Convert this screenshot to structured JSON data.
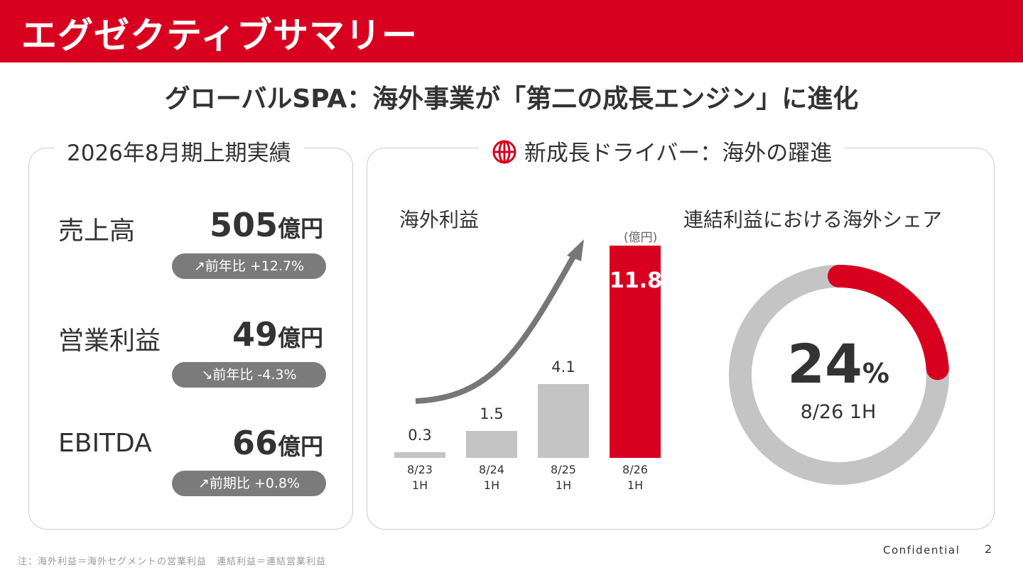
{
  "header": {
    "title": "エグゼクティブサマリー"
  },
  "subtitle": "グローバルSPA：海外事業が「第二の成長エンジン」に進化",
  "left_panel": {
    "title": "2026年8月期上期実績",
    "kpis": [
      {
        "label": "売上高",
        "value": "505",
        "unit": "億円",
        "change": "↗前年比 +12.7%"
      },
      {
        "label": "営業利益",
        "value": "49",
        "unit": "億円",
        "change": "↘前年比 -4.3%"
      },
      {
        "label": "EBITDA",
        "value": "66",
        "unit": "億円",
        "change": "↗前期比 +0.8%"
      }
    ]
  },
  "right_panel": {
    "title": "新成長ドライバー：海外の躍進",
    "icon": "globe-icon",
    "bar_title": "海外利益",
    "unit": "(億円)",
    "donut_title": "連結利益における海外シェア",
    "donut_value": "24",
    "donut_unit": "%",
    "donut_caption": "8/26 1H"
  },
  "chart_data": [
    {
      "type": "bar",
      "title": "海外利益",
      "ylabel": "(億円)",
      "categories": [
        "8/23 1H",
        "8/24 1H",
        "8/25 1H",
        "8/26 1H"
      ],
      "category_lines": [
        [
          "8/23",
          "1H"
        ],
        [
          "8/24",
          "1H"
        ],
        [
          "8/25",
          "1H"
        ],
        [
          "8/26",
          "1H"
        ]
      ],
      "values": [
        0.3,
        1.5,
        4.1,
        11.8
      ],
      "labels": [
        "0.3",
        "1.5",
        "4.1",
        "11.8"
      ],
      "colors": [
        "#c4c4c4",
        "#c4c4c4",
        "#c4c4c4",
        "#d7001f"
      ]
    },
    {
      "type": "pie",
      "title": "連結利益における海外シェア",
      "values": [
        24,
        76
      ],
      "colors": [
        "#d7001f",
        "#c4c4c4"
      ]
    }
  ],
  "colors": {
    "accent": "#d7001f",
    "gray": "#c4c4c4",
    "pill": "#7b7b7b"
  },
  "footer": {
    "note": "注：海外利益＝海外セグメントの営業利益　連結利益＝連結営業利益",
    "confidential": "Confidential",
    "page": "2"
  }
}
